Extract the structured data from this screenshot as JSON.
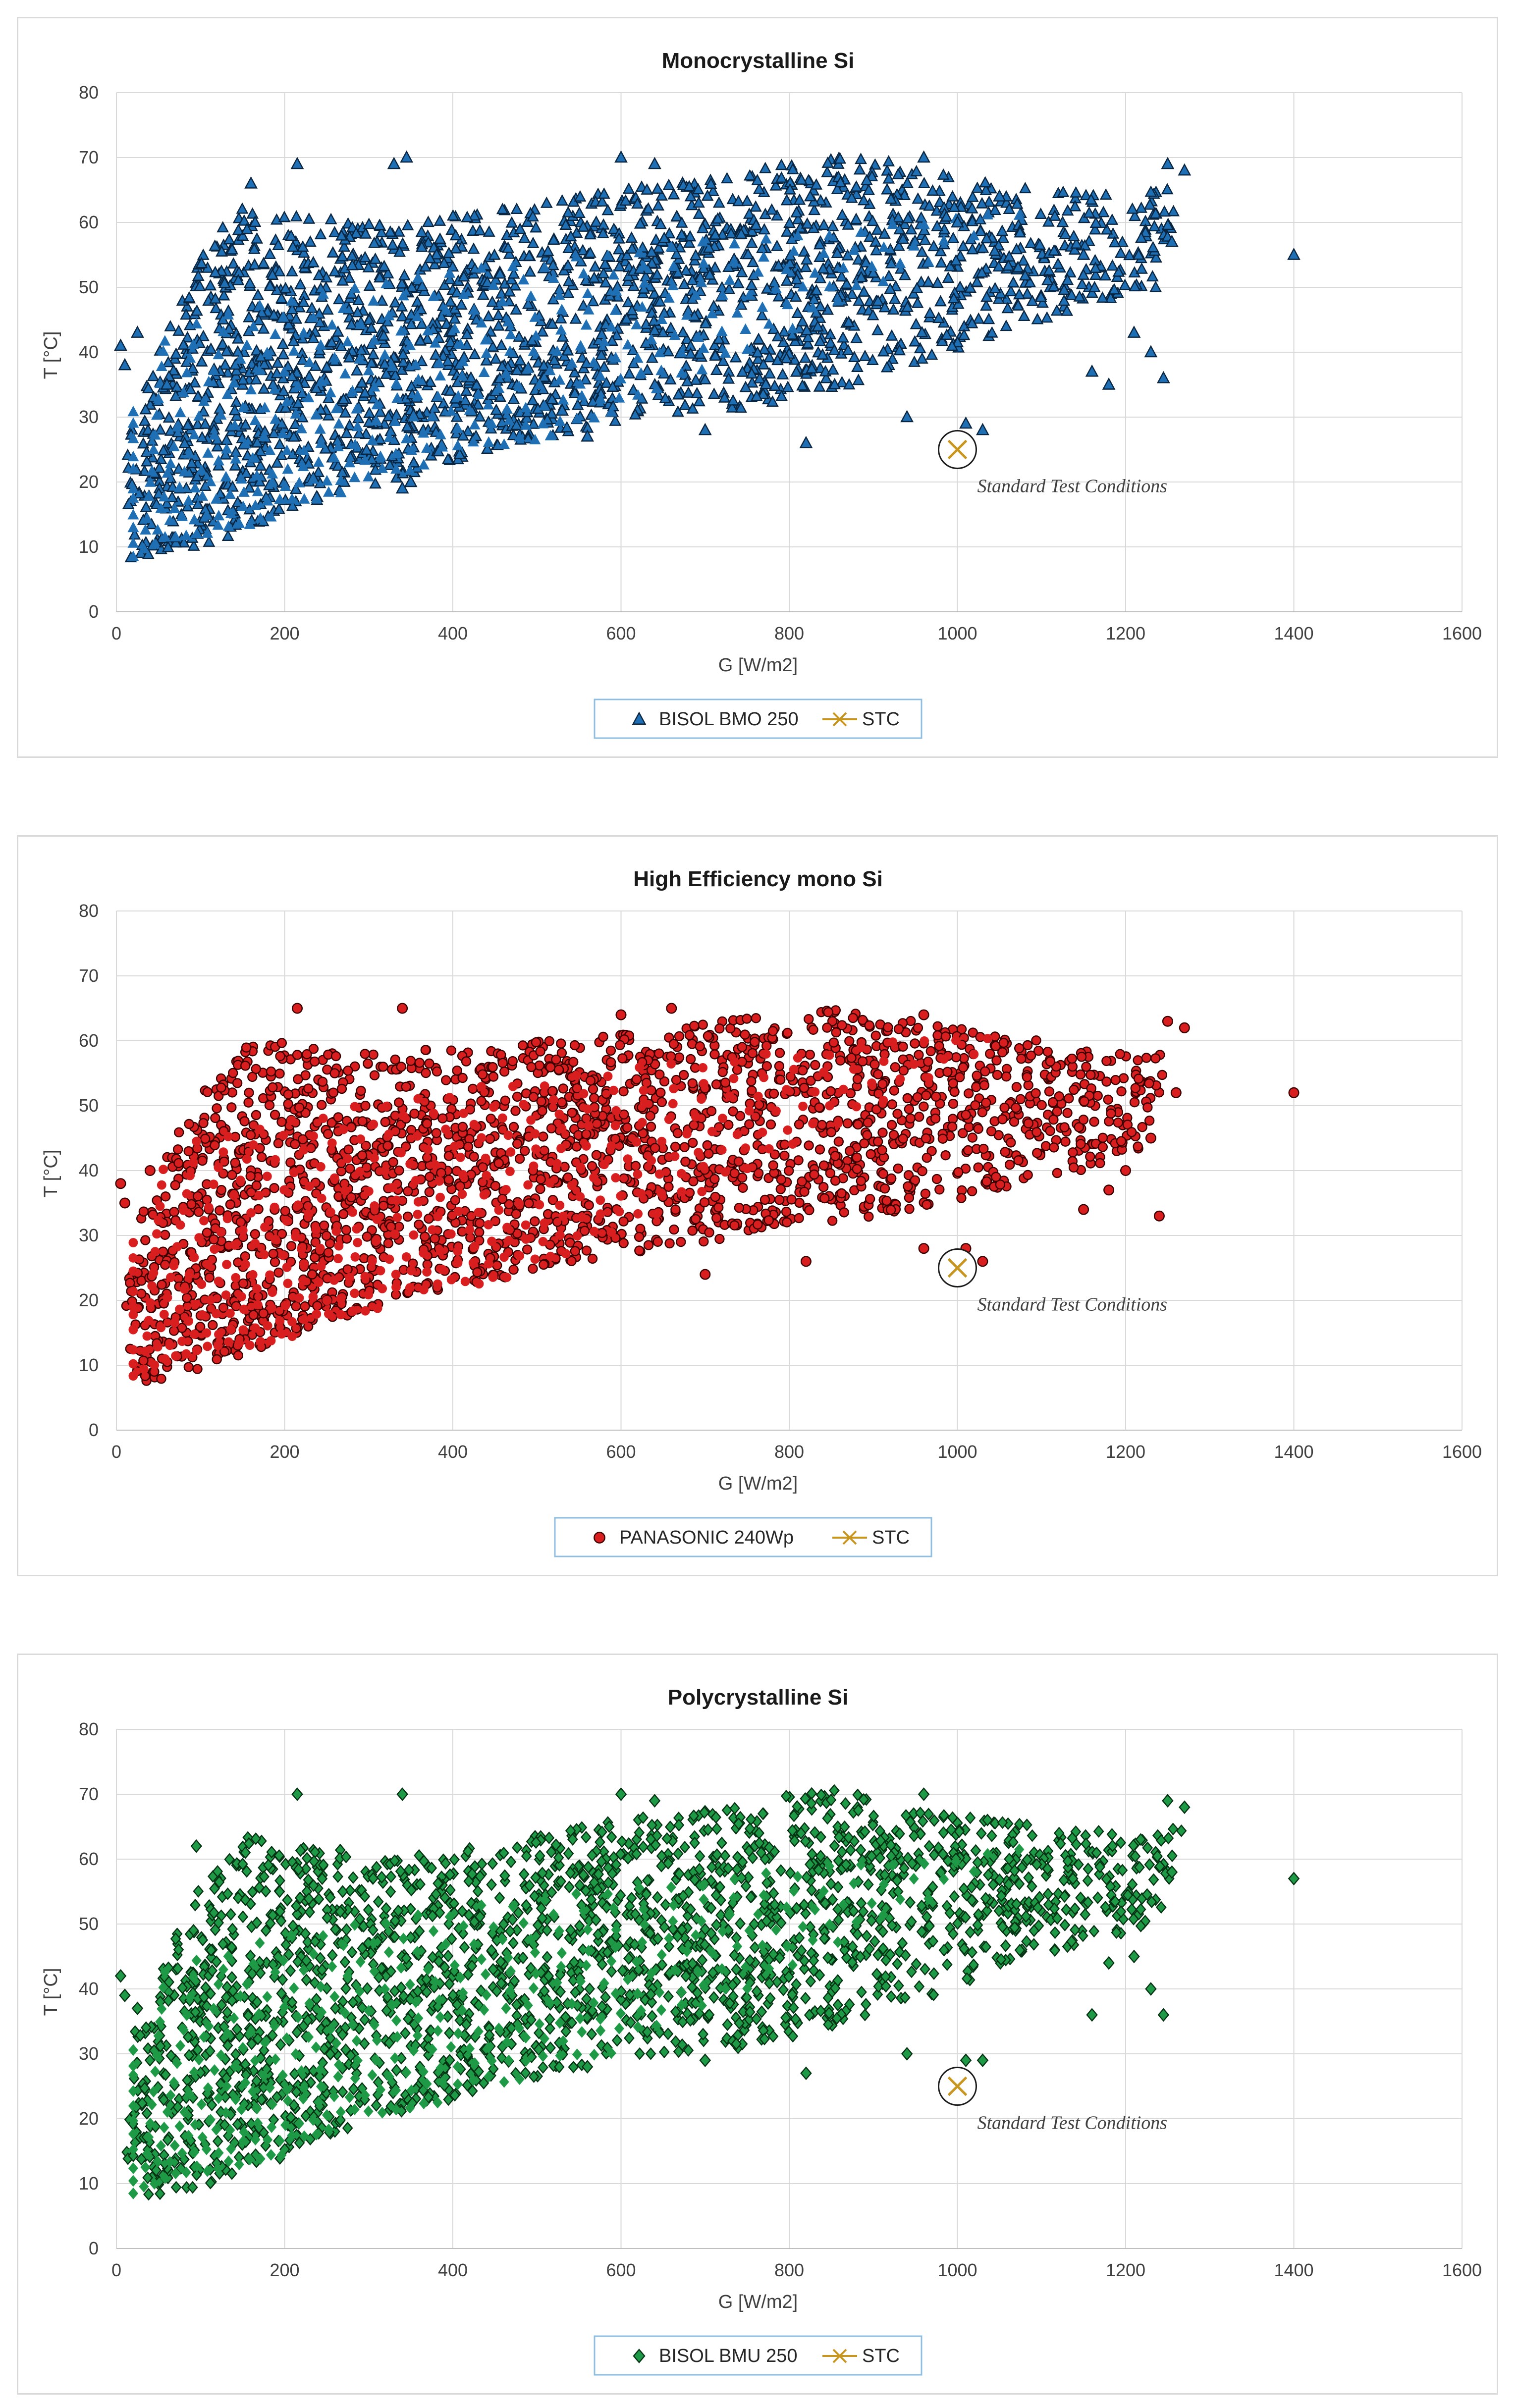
{
  "colors": {
    "stc": "#c8961e",
    "grid": "#d9d9d9",
    "axis_text": "#404040"
  },
  "chart_data": [
    {
      "type": "scatter",
      "title": "Monocrystalline Si",
      "xlabel": "G [W/m2]",
      "ylabel": "T [°C]",
      "xlim": [
        0,
        1600
      ],
      "ylim": [
        0,
        80
      ],
      "x_ticks": [
        "0",
        "200",
        "400",
        "600",
        "800",
        "1000",
        "1200",
        "1400",
        "1600"
      ],
      "y_ticks": [
        "0",
        "10",
        "20",
        "30",
        "40",
        "50",
        "60",
        "70",
        "80"
      ],
      "grid": true,
      "legend_position": "bottom",
      "annotation": "Standard Test Conditions",
      "series": [
        {
          "name": "BISOL BMO 250",
          "marker": "triangle",
          "color": "#1f6fb4",
          "edge_color": "#0a2540",
          "cloud_outline": [
            [
              15,
              8
            ],
            [
              60,
              9
            ],
            [
              120,
              11
            ],
            [
              200,
              15
            ],
            [
              260,
              18
            ],
            [
              350,
              21
            ],
            [
              450,
              25
            ],
            [
              550,
              28
            ],
            [
              650,
              30
            ],
            [
              750,
              31
            ],
            [
              850,
              34
            ],
            [
              950,
              38
            ],
            [
              1050,
              43
            ],
            [
              1150,
              47
            ],
            [
              1240,
              50
            ],
            [
              1270,
              66
            ],
            [
              1200,
              64
            ],
            [
              1100,
              65
            ],
            [
              1000,
              67
            ],
            [
              900,
              70
            ],
            [
              850,
              70
            ],
            [
              800,
              69
            ],
            [
              700,
              67
            ],
            [
              600,
              65
            ],
            [
              500,
              63
            ],
            [
              400,
              61
            ],
            [
              300,
              60
            ],
            [
              250,
              61
            ],
            [
              200,
              62
            ],
            [
              150,
              63
            ],
            [
              100,
              55
            ],
            [
              70,
              47
            ],
            [
              40,
              38
            ],
            [
              20,
              33
            ],
            [
              10,
              20
            ]
          ],
          "outliers": [
            [
              5,
              41
            ],
            [
              10,
              38
            ],
            [
              25,
              43
            ],
            [
              60,
              35
            ],
            [
              160,
              66
            ],
            [
              215,
              69
            ],
            [
              330,
              69
            ],
            [
              345,
              70
            ],
            [
              600,
              70
            ],
            [
              640,
              69
            ],
            [
              960,
              70
            ],
            [
              1000,
              60
            ],
            [
              1050,
              64
            ],
            [
              1150,
              55
            ],
            [
              1160,
              37
            ],
            [
              1230,
              40
            ],
            [
              1245,
              36
            ],
            [
              1250,
              69
            ],
            [
              1255,
              57
            ],
            [
              1270,
              68
            ],
            [
              1400,
              55
            ],
            [
              1010,
              29
            ],
            [
              1030,
              28
            ],
            [
              940,
              30
            ],
            [
              820,
              26
            ],
            [
              700,
              28
            ],
            [
              560,
              27
            ],
            [
              530,
              31
            ],
            [
              340,
              19
            ],
            [
              350,
              20
            ],
            [
              1180,
              35
            ],
            [
              1210,
              43
            ]
          ]
        },
        {
          "name": "STC",
          "marker": "x-line",
          "color": "#c8961e",
          "points": [
            [
              1000,
              25
            ]
          ]
        }
      ]
    },
    {
      "type": "scatter",
      "title": "High Efficiency mono Si",
      "xlabel": "G [W/m2]",
      "ylabel": "T [°C]",
      "xlim": [
        0,
        1600
      ],
      "ylim": [
        0,
        80
      ],
      "x_ticks": [
        "0",
        "200",
        "400",
        "600",
        "800",
        "1000",
        "1200",
        "1400",
        "1600"
      ],
      "y_ticks": [
        "0",
        "10",
        "20",
        "30",
        "40",
        "50",
        "60",
        "70",
        "80"
      ],
      "grid": true,
      "legend_position": "bottom",
      "annotation": "Standard Test Conditions",
      "series": [
        {
          "name": "PANASONIC 240Wp",
          "marker": "circle",
          "color": "#d81e1e",
          "edge_color": "#3a0000",
          "cloud_outline": [
            [
              20,
              7
            ],
            [
              60,
              8
            ],
            [
              120,
              10
            ],
            [
              200,
              14
            ],
            [
              260,
              17
            ],
            [
              350,
              20
            ],
            [
              450,
              23
            ],
            [
              550,
              26
            ],
            [
              650,
              28
            ],
            [
              750,
              30
            ],
            [
              850,
              32
            ],
            [
              950,
              34
            ],
            [
              1050,
              37
            ],
            [
              1150,
              40
            ],
            [
              1230,
              44
            ],
            [
              1250,
              58
            ],
            [
              1200,
              58
            ],
            [
              1100,
              60
            ],
            [
              1000,
              62
            ],
            [
              900,
              64
            ],
            [
              850,
              65
            ],
            [
              800,
              64
            ],
            [
              700,
              63
            ],
            [
              600,
              61
            ],
            [
              500,
              60
            ],
            [
              400,
              59
            ],
            [
              300,
              58
            ],
            [
              250,
              59
            ],
            [
              200,
              60
            ],
            [
              150,
              59
            ],
            [
              100,
              52
            ],
            [
              70,
              45
            ],
            [
              40,
              36
            ],
            [
              20,
              30
            ],
            [
              10,
              20
            ]
          ],
          "outliers": [
            [
              5,
              38
            ],
            [
              10,
              35
            ],
            [
              40,
              40
            ],
            [
              215,
              65
            ],
            [
              340,
              65
            ],
            [
              600,
              64
            ],
            [
              660,
              65
            ],
            [
              960,
              64
            ],
            [
              1010,
              28
            ],
            [
              1030,
              26
            ],
            [
              960,
              28
            ],
            [
              820,
              26
            ],
            [
              700,
              24
            ],
            [
              1180,
              37
            ],
            [
              1230,
              45
            ],
            [
              1240,
              33
            ],
            [
              1250,
              63
            ],
            [
              1260,
              52
            ],
            [
              1270,
              62
            ],
            [
              1400,
              52
            ],
            [
              1200,
              40
            ],
            [
              1150,
              34
            ]
          ]
        },
        {
          "name": "STC",
          "marker": "x-line",
          "color": "#c8961e",
          "points": [
            [
              1000,
              25
            ]
          ]
        }
      ]
    },
    {
      "type": "scatter",
      "title": "Polycrystalline Si",
      "xlabel": "G [W/m2]",
      "ylabel": "T [°C]",
      "xlim": [
        0,
        1600
      ],
      "ylim": [
        0,
        80
      ],
      "x_ticks": [
        "0",
        "200",
        "400",
        "600",
        "800",
        "1000",
        "1200",
        "1400",
        "1600"
      ],
      "y_ticks": [
        "0",
        "10",
        "20",
        "30",
        "40",
        "50",
        "60",
        "70",
        "80"
      ],
      "grid": true,
      "legend_position": "bottom",
      "annotation": "Standard Test Conditions",
      "series": [
        {
          "name": "BISOL BMU 250",
          "marker": "diamond",
          "color": "#1e9a46",
          "edge_color": "#063214",
          "cloud_outline": [
            [
              15,
              7
            ],
            [
              60,
              8
            ],
            [
              120,
              10
            ],
            [
              200,
              14
            ],
            [
              260,
              18
            ],
            [
              350,
              21
            ],
            [
              450,
              25
            ],
            [
              550,
              28
            ],
            [
              650,
              30
            ],
            [
              750,
              31
            ],
            [
              850,
              34
            ],
            [
              950,
              38
            ],
            [
              1050,
              43
            ],
            [
              1150,
              47
            ],
            [
              1240,
              50
            ],
            [
              1270,
              66
            ],
            [
              1200,
              64
            ],
            [
              1100,
              65
            ],
            [
              1000,
              67
            ],
            [
              900,
              70
            ],
            [
              850,
              71
            ],
            [
              800,
              70
            ],
            [
              700,
              68
            ],
            [
              600,
              66
            ],
            [
              500,
              64
            ],
            [
              400,
              62
            ],
            [
              300,
              61
            ],
            [
              250,
              62
            ],
            [
              200,
              63
            ],
            [
              150,
              64
            ],
            [
              100,
              56
            ],
            [
              70,
              48
            ],
            [
              40,
              38
            ],
            [
              20,
              33
            ],
            [
              10,
              20
            ]
          ],
          "outliers": [
            [
              5,
              42
            ],
            [
              10,
              39
            ],
            [
              25,
              37
            ],
            [
              95,
              62
            ],
            [
              215,
              70
            ],
            [
              340,
              70
            ],
            [
              600,
              70
            ],
            [
              640,
              69
            ],
            [
              960,
              70
            ],
            [
              1010,
              29
            ],
            [
              1030,
              29
            ],
            [
              940,
              30
            ],
            [
              820,
              27
            ],
            [
              700,
              29
            ],
            [
              560,
              28
            ],
            [
              1160,
              36
            ],
            [
              1230,
              40
            ],
            [
              1245,
              36
            ],
            [
              1250,
              69
            ],
            [
              1255,
              58
            ],
            [
              1270,
              68
            ],
            [
              1400,
              57
            ],
            [
              1180,
              44
            ],
            [
              1210,
              45
            ]
          ]
        },
        {
          "name": "STC",
          "marker": "x-line",
          "color": "#c8961e",
          "points": [
            [
              1000,
              25
            ]
          ]
        }
      ]
    }
  ]
}
